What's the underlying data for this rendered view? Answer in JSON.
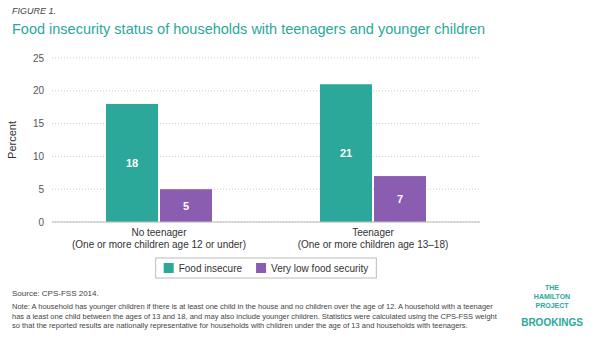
{
  "chart_data": {
    "type": "bar",
    "title": "Food insecurity status of households with teenagers and younger children",
    "annotations": [
      "FIGURE 1.",
      "Source: CPS-FSS 2014.",
      "Note: A household has younger children if there is at least one child in the house and no children over the age of 12. A household with a teenager has a least one child between the ages of 13 and 18, and may also include younger children. Statistics were calculated using the CPS-FSS weight so that the reported results are nationally representative for households with children under the age of 13 and households with teenagers.",
      "THE\nHAMILTON\nPROJECT",
      "BROOKINGS"
    ],
    "categories": [
      "No teenager\n(One or more children age 12 or under)",
      "Teenager\n(One or more children age 13–18)"
    ],
    "series": [
      {
        "name": "Food insecure",
        "color": "#2BA89A",
        "values": [
          18,
          21
        ]
      },
      {
        "name": "Very low food security",
        "color": "#8A5DB0",
        "values": [
          5,
          7
        ]
      }
    ],
    "ylabel": "Percent",
    "ylim": [
      0,
      25
    ],
    "yticks": [
      0,
      5,
      10,
      15,
      20,
      25
    ],
    "grid": true,
    "legend": "bottom",
    "data_labels": true
  }
}
